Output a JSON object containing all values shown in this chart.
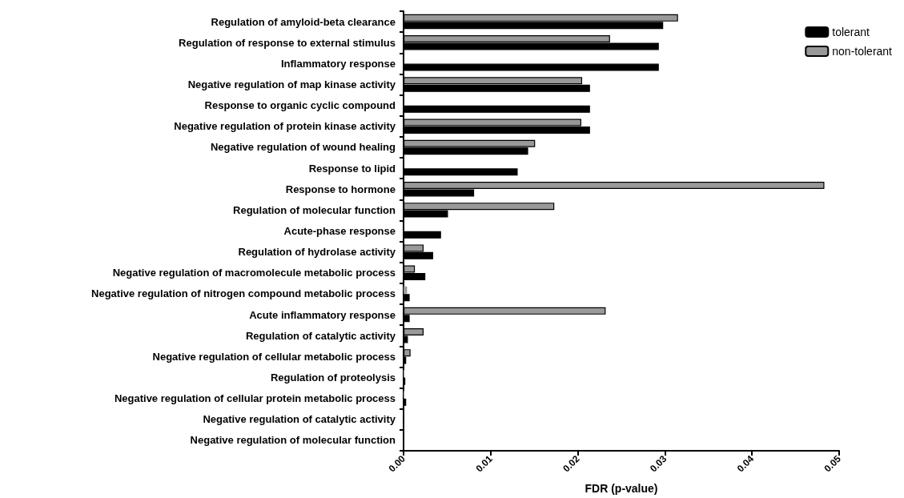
{
  "chart_data": {
    "type": "bar",
    "orientation": "horizontal",
    "xlabel": "FDR (p-value)",
    "categories": [
      "Regulation of amyloid-beta clearance",
      "Regulation of response to external stimulus",
      "Inflammatory response",
      "Negative regulation of map kinase activity",
      "Response to organic cyclic compound",
      "Negative regulation of protein kinase activity",
      "Negative regulation of wound healing",
      "Response to lipid",
      "Response to hormone",
      "Regulation of molecular function",
      "Acute-phase response",
      "Regulation of hydrolase activity",
      "Negative regulation of macromolecule metabolic process",
      "Negative regulation of nitrogen compound metabolic process",
      "Acute inflammatory response",
      "Regulation of catalytic activity",
      "Negative regulation of cellular metabolic process",
      "Regulation of proteolysis",
      "Negative regulation of cellular protein metabolic process",
      "Negative regulation of catalytic activity",
      "Negative regulation of molecular function"
    ],
    "series": [
      {
        "name": "tolerant",
        "color": "#000000",
        "values": [
          0.0298,
          0.0293,
          0.0293,
          0.0214,
          0.0214,
          0.0214,
          0.0143,
          0.0131,
          0.0081,
          0.0051,
          0.0043,
          0.0034,
          0.0025,
          0.0007,
          0.0007,
          0.0005,
          0.0003,
          0.0002,
          0.0003,
          null,
          null
        ]
      },
      {
        "name": "non-tolerant",
        "color": "#999999",
        "values": [
          0.0315,
          0.0237,
          null,
          0.0205,
          null,
          0.0204,
          0.0151,
          null,
          0.0483,
          0.0173,
          null,
          0.0023,
          0.0013,
          0.0004,
          0.0232,
          0.0023,
          0.0008,
          0.0001,
          0.0001,
          null,
          null
        ]
      }
    ],
    "xlim": [
      0,
      0.05
    ],
    "xticks": [
      {
        "value": 0,
        "label": "0.00"
      },
      0.01,
      0.02,
      0.03,
      0.04,
      0.05
    ],
    "grid": false,
    "legend": "top right"
  }
}
